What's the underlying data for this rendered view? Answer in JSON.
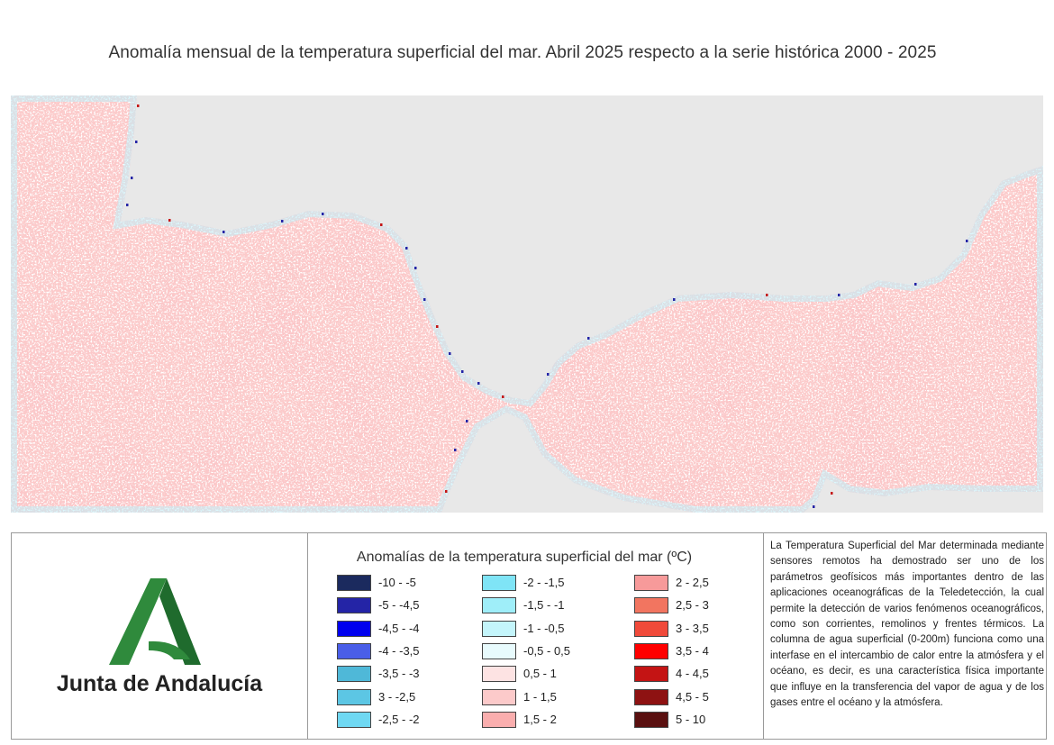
{
  "title": "Anomalía mensual de la temperatura superficial del mar. Abril 2025 respecto a la serie histórica 2000 - 2025",
  "logo": {
    "text": "Junta de Andalucía",
    "green": "#2f8a3c",
    "dark_green": "#1f6b2d"
  },
  "legend": {
    "title": "Anomalías de la temperatura superficial del mar (ºC)",
    "items": [
      {
        "label": "-10 - -5",
        "color": "#1b2a5e"
      },
      {
        "label": "-5 - -4,5",
        "color": "#2424a6"
      },
      {
        "label": "-4,5 - -4",
        "color": "#0000ee"
      },
      {
        "label": "-4 - -3,5",
        "color": "#4a5ee8"
      },
      {
        "label": "-3,5 - -3",
        "color": "#4fb8d8"
      },
      {
        "label": "3 - -2,5",
        "color": "#5cc6e4"
      },
      {
        "label": "-2,5 - -2",
        "color": "#6fd8f2"
      },
      {
        "label": "-2 - -1,5",
        "color": "#7fe4f6"
      },
      {
        "label": "-1,5 - -1",
        "color": "#9feef9"
      },
      {
        "label": "-1 - -0,5",
        "color": "#c4f5fb"
      },
      {
        "label": "-0,5 - 0,5",
        "color": "#e8fbfd"
      },
      {
        "label": "0,5 - 1",
        "color": "#fde3e3"
      },
      {
        "label": "1 - 1,5",
        "color": "#fccaca"
      },
      {
        "label": "1,5 - 2",
        "color": "#faaeae"
      },
      {
        "label": "2 - 2,5",
        "color": "#f79a9a"
      },
      {
        "label": "2,5 - 3",
        "color": "#f27560"
      },
      {
        "label": "3 - 3,5",
        "color": "#f04a3a"
      },
      {
        "label": "3,5 - 4",
        "color": "#ff0000"
      },
      {
        "label": "4 - 4,5",
        "color": "#c41414"
      },
      {
        "label": "4,5 - 5",
        "color": "#8e1212"
      },
      {
        "label": "5 - 10",
        "color": "#5a1010"
      }
    ]
  },
  "description": "La Temperatura Superficial del Mar determinada mediante sensores remotos ha demostrado ser uno de los parámetros geofísicos más importantes dentro de las aplicaciones oceanográficas de la Teledetección, la cual permite la detección de varios fenómenos oceanográficos, como son corrientes, remolinos y frentes térmicos. La columna de agua superficial (0-200m) funciona como una interfase en el intercambio de calor entre la atmósfera y el océano, es decir, es una característica física importante que influye en la transferencia del vapor de agua y de los gases entre el océano y la atmósfera.",
  "map": {
    "land_color": "#e8e8e8",
    "sea_base_color": "#fccaca"
  }
}
